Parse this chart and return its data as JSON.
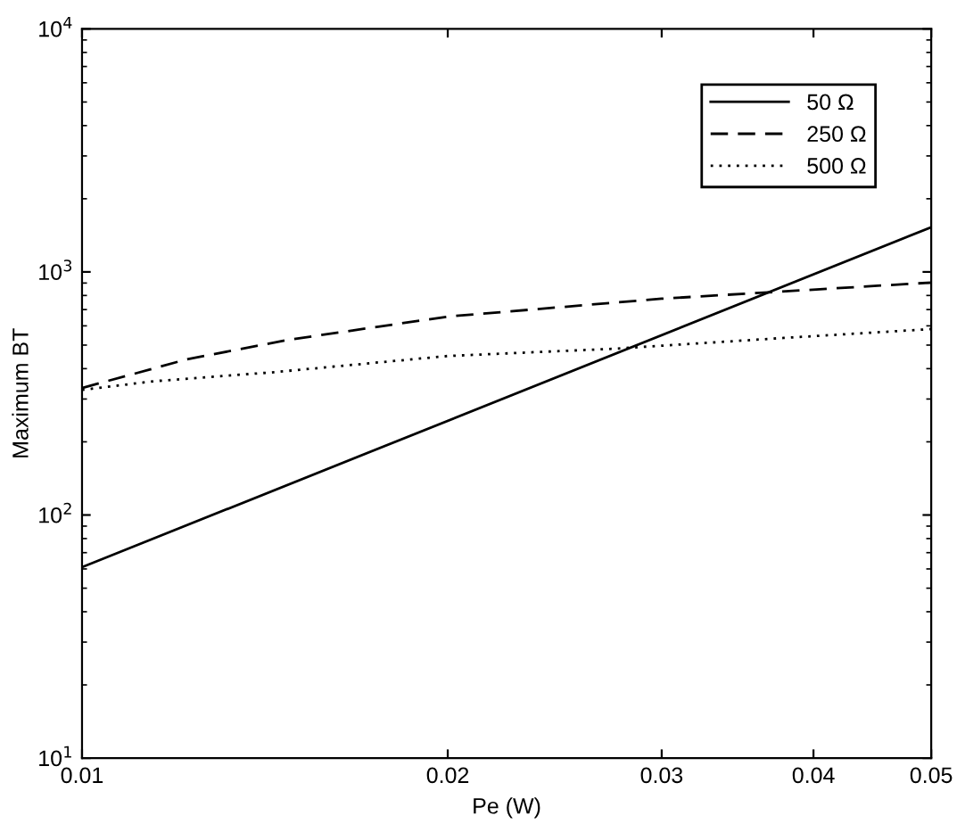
{
  "chart_data": {
    "type": "line",
    "xlabel": "Pe (W)",
    "ylabel": "Maximum BT",
    "log": "xy",
    "xlim": [
      0.01,
      0.05
    ],
    "ylim": [
      10,
      10000
    ],
    "xticks": [
      0.01,
      0.02,
      0.03,
      0.04,
      0.05
    ],
    "yticks": [
      {
        "value": 10,
        "label": "10$^{1}$"
      },
      {
        "value": 100,
        "label": "10$^{2}$"
      },
      {
        "value": 1000,
        "label": "10$^{3}$"
      },
      {
        "value": 10000,
        "label": "10$^{4}$"
      }
    ],
    "legend": "top right",
    "grid": false,
    "marker": "none",
    "series": [
      {
        "name": "50 Ω",
        "color": "#000000",
        "line_style": "solid",
        "x": [
          0.01,
          0.05
        ],
        "values": [
          61,
          1527
        ]
      },
      {
        "name": "250 Ω",
        "color": "#000000",
        "line_style": "dashed",
        "x": [
          0.01,
          0.0122,
          0.0148,
          0.02,
          0.03,
          0.05
        ],
        "values": [
          333,
          437,
          526,
          655,
          776,
          904
        ]
      },
      {
        "name": "500 Ω",
        "color": "#000000",
        "line_style": "dotted",
        "x": [
          0.01,
          0.01145,
          0.0144,
          0.02,
          0.0274,
          0.0378,
          0.05
        ],
        "values": [
          327,
          355,
          387,
          451,
          483,
          535,
          582
        ]
      }
    ]
  }
}
